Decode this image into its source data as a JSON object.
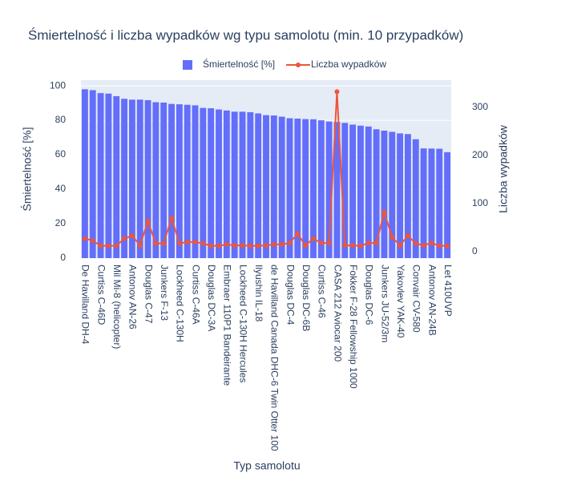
{
  "chart_data": {
    "type": "bar_line",
    "title": "Śmiertelność i liczba wypadków wg typu samolotu (min. 10 przypadków)",
    "x_label": "Typ samolotu",
    "y_label": "Śmiertelność [%]",
    "y2_label": "Liczba wypadków",
    "categories": [
      "De Havilland DH-4",
      null,
      "Curtiss C-46D",
      null,
      "Mil Mi-8 (helicopter)",
      null,
      "Antonov AN-26",
      null,
      "Douglas C-47",
      null,
      "Junkers F-13",
      null,
      "Lockheed C-130H",
      null,
      "Curtiss C-46A",
      null,
      "Douglas DC-3A",
      null,
      "Embraer 110P1 Bandeirante",
      null,
      "Lockheed C-130H Hercules",
      null,
      "Ilyushin IL-18",
      null,
      "de Havilland Canada DHC-6 Twin Otter 100",
      null,
      "Douglas DC-4",
      null,
      "Douglas DC-6B",
      null,
      "Curtiss C-46",
      null,
      "CASA 212 Aviocar 200",
      null,
      "Fokker F-28 Fellowship 1000",
      null,
      "Douglas DC-6",
      null,
      "Junkers JU-52/3m",
      null,
      "Yakovlev YAK-40",
      null,
      "Convair CV-580",
      null,
      "Antonov AN-24B",
      null,
      "Let 410UVP"
    ],
    "series": [
      {
        "name": "Śmiertelność [%]",
        "color": "#636efa",
        "kind": "bar",
        "values": [
          98,
          97.5,
          95.8,
          95.5,
          94,
          92.5,
          92,
          92,
          91.7,
          90.5,
          90.3,
          89.5,
          89.3,
          89,
          88.7,
          87.2,
          87,
          86.3,
          85.7,
          85,
          85,
          84.7,
          84,
          83,
          82.8,
          82.1,
          81.2,
          81,
          80.7,
          80.6,
          80,
          79.3,
          79,
          78.5,
          77.5,
          76.9,
          76.4,
          74.8,
          74,
          73.3,
          72.4,
          72,
          69,
          63.7,
          63.6,
          63.5,
          61.5
        ]
      },
      {
        "name": "Liczba wypadków",
        "color": "#ef553b",
        "kind": "line",
        "axis": "y2",
        "values": [
          27,
          23,
          12,
          12,
          12,
          27,
          33,
          13,
          63,
          17,
          17,
          70,
          17,
          20,
          20,
          17,
          12,
          12,
          15,
          13,
          13,
          12,
          12,
          13,
          15,
          15,
          18,
          37,
          13,
          27,
          18,
          18,
          332,
          13,
          13,
          12,
          18,
          18,
          82,
          30,
          13,
          33,
          17,
          13,
          18,
          12,
          12
        ]
      }
    ],
    "ylim": [
      0,
      103.3
    ],
    "yticks": [
      0,
      20,
      40,
      60,
      80,
      100
    ],
    "y2lim": [
      -13.5,
      356
    ],
    "y2ticks": [
      0,
      100,
      200,
      300
    ],
    "grid": true,
    "legend": "top"
  }
}
